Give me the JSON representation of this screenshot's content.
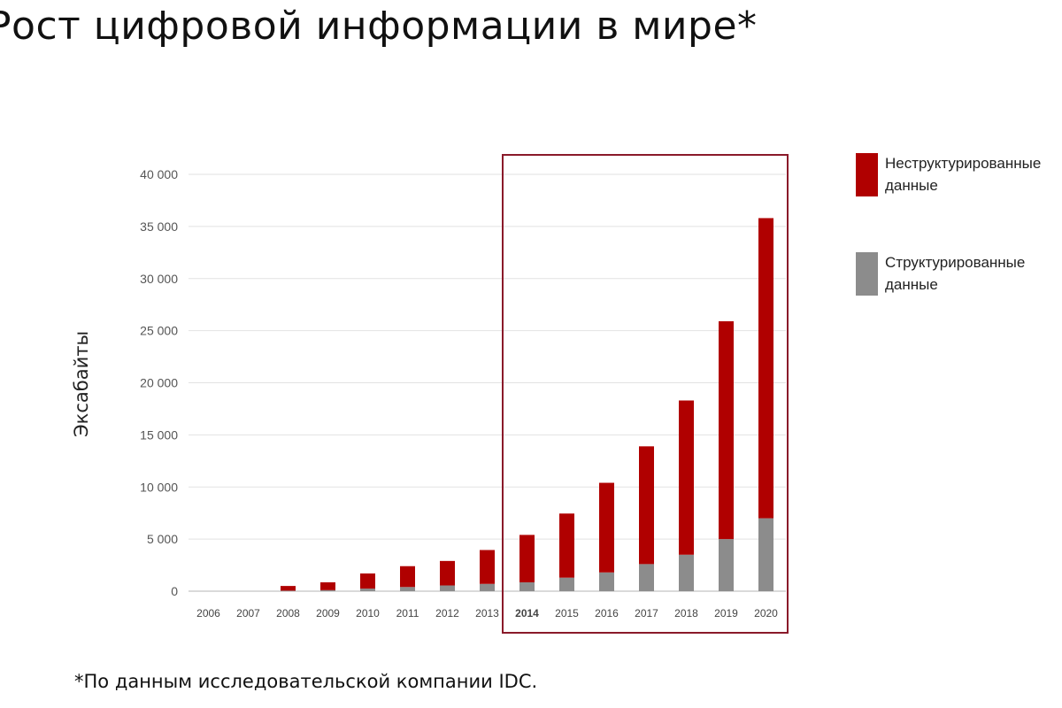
{
  "title": "Рост цифровой информации в мире*",
  "footnote": "*По данным исследовательской компании IDC.",
  "chart_data": {
    "type": "bar",
    "stacked": true,
    "title": "Рост цифровой информации в мире*",
    "ylabel": "Эксабайты",
    "xlabel": "",
    "ylim": [
      0,
      40000
    ],
    "yticks": [
      0,
      5000,
      10000,
      15000,
      20000,
      25000,
      30000,
      35000,
      40000
    ],
    "ytick_labels": [
      "0",
      "5 000",
      "10 000",
      "15 000",
      "20 000",
      "25 000",
      "30 000",
      "35 000",
      "40 000"
    ],
    "grid": true,
    "legend_position": "right",
    "categories": [
      "2006",
      "2007",
      "2008",
      "2009",
      "2010",
      "2011",
      "2012",
      "2013",
      "2014",
      "2015",
      "2016",
      "2017",
      "2018",
      "2019",
      "2020"
    ],
    "highlight_category": "2014",
    "highlight_range": [
      "2014",
      "2020"
    ],
    "series": [
      {
        "name": "Структурированные данные",
        "color": "#8c8c8c",
        "values": [
          0,
          0,
          50,
          100,
          250,
          400,
          550,
          700,
          850,
          1300,
          1800,
          2600,
          3500,
          5000,
          7000
        ]
      },
      {
        "name": "Неструктурированные данные",
        "color": "#b00000",
        "values": [
          0,
          0,
          450,
          750,
          1450,
          2000,
          2350,
          3250,
          4550,
          6150,
          8600,
          11300,
          14800,
          20900,
          28800
        ]
      }
    ],
    "legend": [
      {
        "line1": "Неструктурированные",
        "line2": "данные",
        "color": "#b00000"
      },
      {
        "line1": "Структурированные",
        "line2": "данные",
        "color": "#8c8c8c"
      }
    ]
  }
}
